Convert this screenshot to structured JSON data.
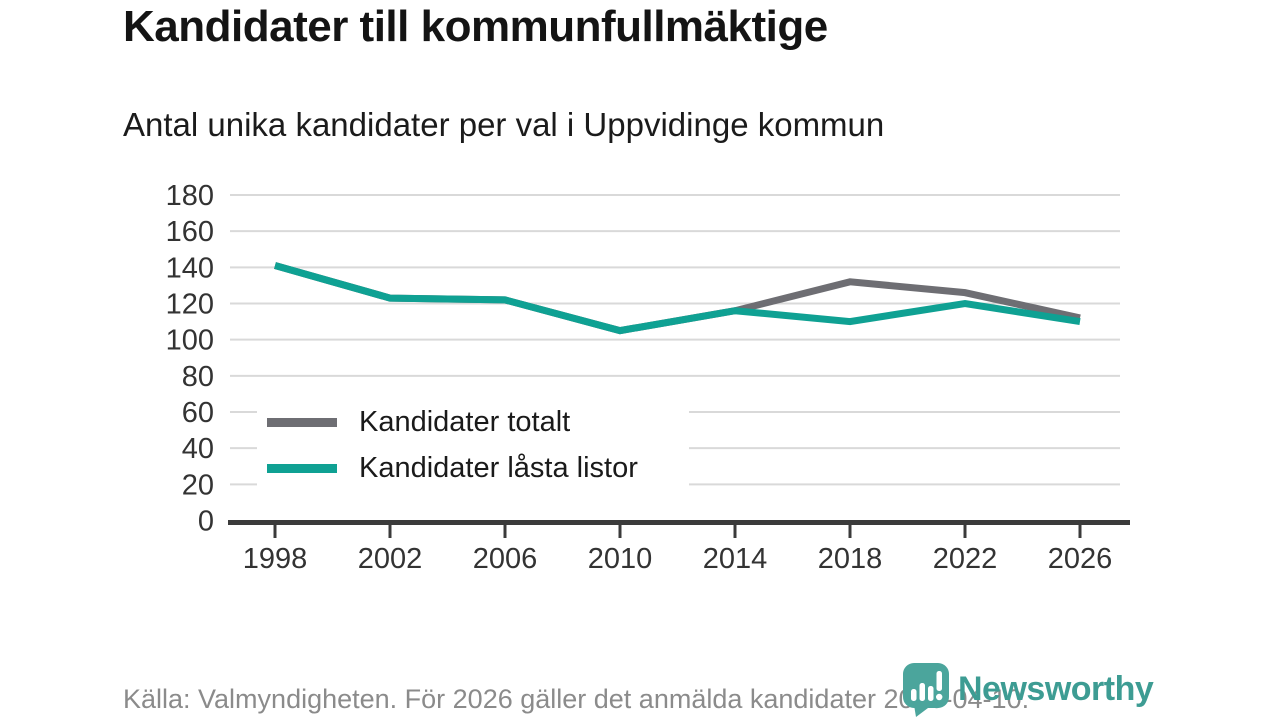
{
  "chart_data": {
    "type": "line",
    "title": "Kandidater till kommunfullmäktige",
    "subtitle": "Antal unika kandidater per val i Uppvidinge kommun",
    "x": [
      1998,
      2002,
      2006,
      2010,
      2014,
      2018,
      2022,
      2026
    ],
    "series": [
      {
        "name": "Kandidater totalt",
        "color": "#6e6e73",
        "values": [
          141,
          123,
          122,
          105,
          116,
          132,
          126,
          112
        ]
      },
      {
        "name": "Kandidater låsta listor",
        "color": "#0fa193",
        "values": [
          141,
          123,
          122,
          105,
          116,
          110,
          120,
          110
        ]
      }
    ],
    "ylim": [
      0,
      180
    ],
    "ytick_step": 20,
    "xlabel": "",
    "ylabel": "",
    "grid": "horizontal gridlines on",
    "legend_position": "inside bottom-left"
  },
  "footer": {
    "source": "Källa: Valmyndigheten. För 2026 gäller det anmälda kandidater 2026-04-10."
  },
  "logo": {
    "text": "Newsworthy",
    "icon": "bar-chart-speech-bubble",
    "text_color": "#3d9c93",
    "icon_color": "#4ba59c"
  },
  "colors": {
    "grid": "#d9d9d9",
    "axis": "#3b3b3b",
    "tick_label": "#333333",
    "source_text": "#8b8b8b",
    "background": "#ffffff"
  }
}
